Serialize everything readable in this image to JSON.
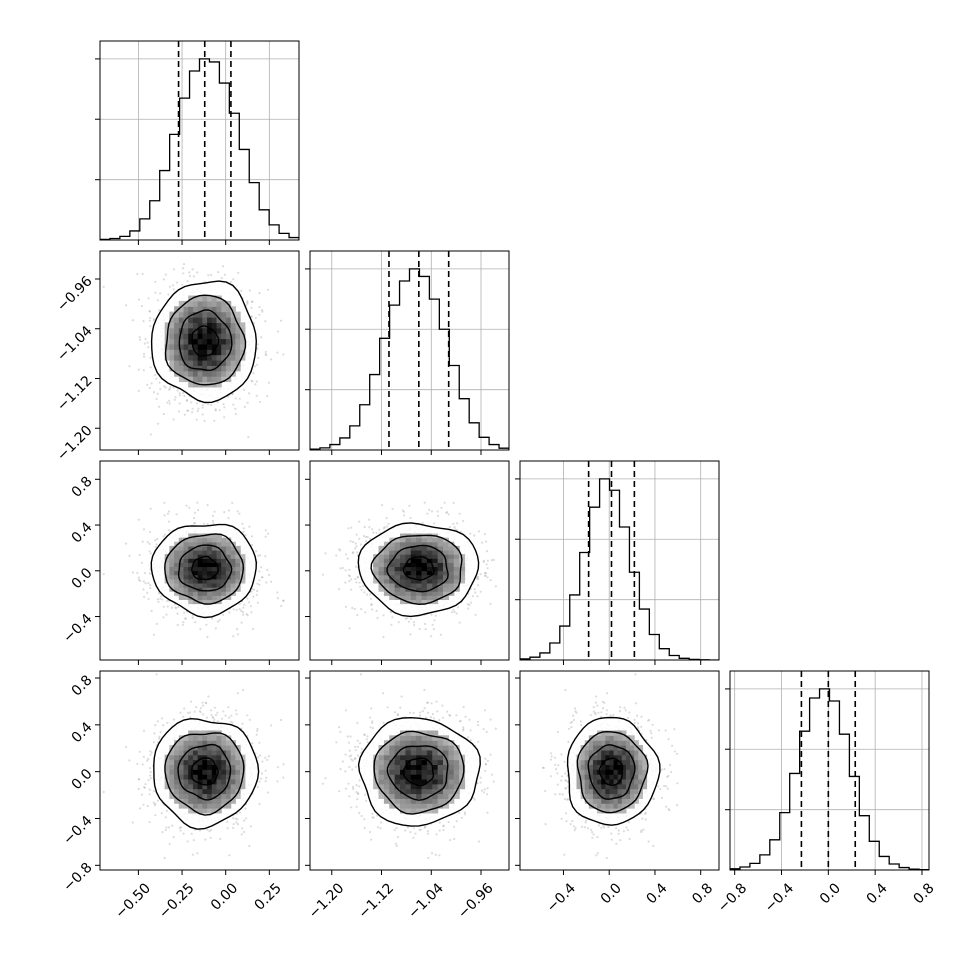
{
  "chart_data": {
    "type": "corner",
    "n_params": 4,
    "grid": true,
    "quantiles": [
      0.16,
      0.5,
      0.84
    ],
    "colors": {
      "hist": "#000000",
      "quantile": "#000000",
      "grid": "#b0b0b0",
      "points": "#9a9a9a"
    },
    "params": [
      {
        "range": [
          -0.72,
          0.42
        ],
        "ticks": [
          -0.5,
          -0.25,
          0.0,
          0.25
        ],
        "tick_labels": [
          "−0.50",
          "−0.25",
          "0.00",
          "0.25"
        ],
        "mean": -0.12,
        "sd": 0.15,
        "quantile_values": [
          -0.27,
          -0.12,
          0.03
        ]
      },
      {
        "range": [
          -1.235,
          -0.915
        ],
        "ticks": [
          -1.2,
          -1.12,
          -1.04,
          -0.96
        ],
        "tick_labels": [
          "−1.20",
          "−1.12",
          "−1.04",
          "−0.96"
        ],
        "mean": -1.06,
        "sd": 0.048,
        "quantile_values": [
          -1.108,
          -1.06,
          -1.012
        ]
      },
      {
        "range": [
          -0.78,
          0.96
        ],
        "ticks": [
          -0.4,
          0.0,
          0.4,
          0.8
        ],
        "tick_labels": [
          "−0.4",
          "0.0",
          "0.4",
          "0.8"
        ],
        "mean": 0.02,
        "sd": 0.2,
        "quantile_values": [
          -0.18,
          0.02,
          0.22
        ]
      },
      {
        "range": [
          -0.84,
          0.86
        ],
        "ticks": [
          -0.8,
          -0.4,
          0.0,
          0.4,
          0.8
        ],
        "tick_labels": [
          "−0.8",
          "−0.4",
          "0.0",
          "0.4",
          "0.8"
        ],
        "mean": 0.0,
        "sd": 0.23,
        "quantile_values": [
          -0.23,
          0.0,
          0.23
        ]
      }
    ],
    "histograms": [
      {
        "param": 0,
        "bins": 20,
        "counts": [
          2,
          5,
          12,
          30,
          70,
          130,
          230,
          350,
          470,
          560,
          600,
          590,
          520,
          420,
          300,
          190,
          100,
          50,
          22,
          8
        ]
      },
      {
        "param": 1,
        "bins": 20,
        "counts": [
          3,
          7,
          18,
          40,
          80,
          150,
          250,
          370,
          480,
          560,
          600,
          575,
          500,
          400,
          280,
          170,
          90,
          42,
          18,
          6
        ]
      },
      {
        "param": 2,
        "bins": 20,
        "counts": [
          4,
          10,
          25,
          60,
          120,
          230,
          380,
          540,
          640,
          600,
          470,
          310,
          180,
          90,
          40,
          16,
          6,
          2,
          1,
          0
        ]
      },
      {
        "param": 3,
        "bins": 20,
        "counts": [
          4,
          10,
          22,
          50,
          100,
          190,
          320,
          460,
          570,
          600,
          560,
          450,
          310,
          180,
          95,
          45,
          20,
          8,
          3,
          1
        ]
      }
    ],
    "contour_levels_sigma": [
      0.5,
      1.0,
      1.5,
      2.0
    ],
    "n_scatter_points": 1400
  }
}
